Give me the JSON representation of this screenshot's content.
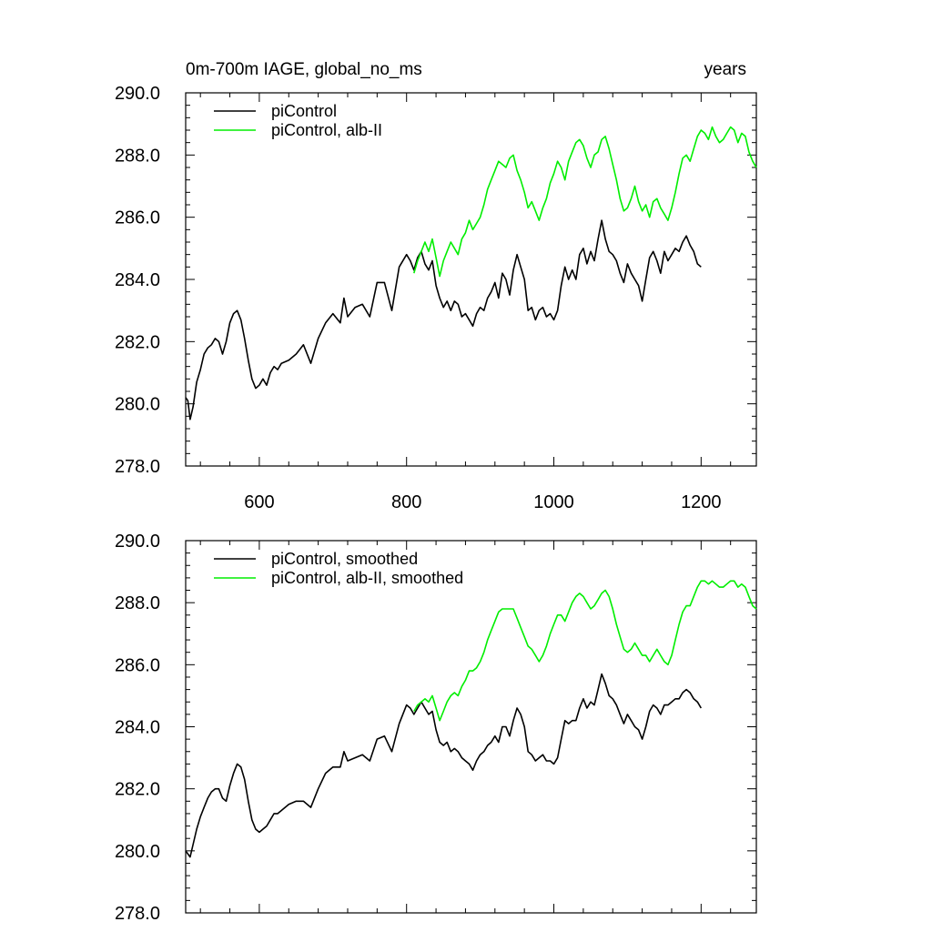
{
  "title_left": "0m-700m IAGE, global_no_ms",
  "title_right": "years",
  "colors": {
    "control": "#000000",
    "alb": "#00ee00"
  },
  "chart_data": [
    {
      "type": "line",
      "xlim": [
        500,
        1275
      ],
      "ylim": [
        278,
        290
      ],
      "xticks": [
        600,
        800,
        1000,
        1200
      ],
      "xtick_labels": [
        "600",
        "800",
        "1000",
        "1200"
      ],
      "yticks": [
        278,
        280,
        282,
        284,
        286,
        288,
        290
      ],
      "ytick_labels": [
        "278.0",
        "280.0",
        "282.0",
        "284.0",
        "286.0",
        "288.0",
        "290.0"
      ],
      "grid": false,
      "legend": "top-left",
      "series": [
        {
          "name": "piControl",
          "color": "#000000",
          "x": [
            500,
            503,
            506,
            510,
            515,
            520,
            525,
            530,
            535,
            540,
            545,
            550,
            555,
            560,
            565,
            570,
            575,
            580,
            585,
            590,
            595,
            600,
            605,
            610,
            615,
            620,
            625,
            630,
            640,
            650,
            660,
            670,
            680,
            690,
            700,
            710,
            715,
            720,
            730,
            740,
            750,
            760,
            770,
            780,
            790,
            800,
            805,
            810,
            815,
            820,
            825,
            830,
            835,
            840,
            845,
            850,
            855,
            860,
            865,
            870,
            875,
            880,
            885,
            890,
            895,
            900,
            905,
            910,
            915,
            920,
            925,
            930,
            935,
            940,
            945,
            950,
            955,
            960,
            965,
            970,
            975,
            980,
            985,
            990,
            995,
            1000,
            1005,
            1010,
            1015,
            1020,
            1025,
            1030,
            1035,
            1040,
            1045,
            1050,
            1055,
            1060,
            1065,
            1070,
            1075,
            1080,
            1085,
            1090,
            1095,
            1100,
            1105,
            1110,
            1115,
            1120,
            1125,
            1130,
            1135,
            1140,
            1145,
            1150,
            1155,
            1160,
            1165,
            1170,
            1175,
            1180,
            1185,
            1190,
            1195,
            1200
          ],
          "y": [
            280.2,
            280.1,
            279.5,
            279.9,
            280.7,
            281.1,
            281.6,
            281.8,
            281.9,
            282.1,
            282.0,
            281.6,
            282.0,
            282.6,
            282.9,
            283.0,
            282.7,
            282.1,
            281.4,
            280.8,
            280.5,
            280.6,
            280.8,
            280.6,
            281.0,
            281.2,
            281.1,
            281.3,
            281.4,
            281.6,
            281.9,
            281.3,
            282.1,
            282.6,
            282.9,
            282.6,
            283.4,
            282.8,
            283.1,
            283.2,
            282.8,
            283.9,
            283.9,
            283.0,
            284.4,
            284.8,
            284.6,
            284.3,
            284.7,
            284.9,
            284.5,
            284.3,
            284.6,
            283.8,
            283.4,
            283.1,
            283.3,
            283.0,
            283.3,
            283.2,
            282.8,
            282.9,
            282.7,
            282.5,
            282.9,
            283.1,
            283.0,
            283.4,
            283.6,
            283.9,
            283.4,
            284.2,
            284.0,
            283.5,
            284.3,
            284.8,
            284.4,
            284.0,
            283.0,
            283.1,
            282.7,
            283.0,
            283.1,
            282.8,
            282.9,
            282.7,
            283.0,
            283.8,
            284.4,
            284.0,
            284.3,
            284.0,
            284.8,
            285.0,
            284.5,
            284.9,
            284.6,
            285.3,
            285.9,
            285.3,
            284.9,
            284.8,
            284.6,
            284.2,
            283.9,
            284.5,
            284.2,
            284.0,
            283.8,
            283.3,
            284.0,
            284.7,
            284.9,
            284.6,
            284.2,
            284.9,
            284.6,
            284.8,
            285.0,
            284.9,
            285.2,
            285.4,
            285.1,
            284.9,
            284.5,
            284.4
          ]
        },
        {
          "name": "piControl, alb-II",
          "color": "#00ee00",
          "x": [
            810,
            815,
            820,
            825,
            830,
            835,
            840,
            845,
            850,
            855,
            860,
            865,
            870,
            875,
            880,
            885,
            890,
            895,
            900,
            905,
            910,
            915,
            920,
            925,
            930,
            935,
            940,
            945,
            950,
            955,
            960,
            965,
            970,
            975,
            980,
            985,
            990,
            995,
            1000,
            1005,
            1010,
            1015,
            1020,
            1025,
            1030,
            1035,
            1040,
            1045,
            1050,
            1055,
            1060,
            1065,
            1070,
            1075,
            1080,
            1085,
            1090,
            1095,
            1100,
            1105,
            1110,
            1115,
            1120,
            1125,
            1130,
            1135,
            1140,
            1145,
            1150,
            1155,
            1160,
            1165,
            1170,
            1175,
            1180,
            1185,
            1190,
            1195,
            1200,
            1205,
            1210,
            1215,
            1220,
            1225,
            1230,
            1235,
            1240,
            1245,
            1250,
            1255,
            1260,
            1265,
            1270,
            1275
          ],
          "y": [
            284.2,
            284.6,
            284.9,
            285.2,
            284.9,
            285.3,
            284.7,
            284.1,
            284.6,
            284.9,
            285.2,
            285.0,
            284.8,
            285.3,
            285.5,
            285.9,
            285.6,
            285.8,
            286.0,
            286.4,
            286.9,
            287.2,
            287.5,
            287.8,
            287.7,
            287.6,
            287.9,
            288.0,
            287.5,
            287.2,
            286.8,
            286.3,
            286.5,
            286.2,
            285.9,
            286.3,
            286.6,
            287.1,
            287.4,
            287.8,
            287.6,
            287.2,
            287.8,
            288.1,
            288.4,
            288.5,
            288.3,
            287.9,
            287.6,
            288.0,
            288.1,
            288.5,
            288.6,
            288.2,
            287.7,
            287.2,
            286.6,
            286.2,
            286.3,
            286.6,
            287.0,
            286.5,
            286.2,
            286.4,
            286.0,
            286.5,
            286.6,
            286.3,
            286.1,
            285.9,
            286.3,
            286.8,
            287.4,
            287.9,
            288.0,
            287.8,
            288.2,
            288.6,
            288.8,
            288.7,
            288.5,
            288.9,
            288.6,
            288.4,
            288.5,
            288.7,
            288.9,
            288.8,
            288.4,
            288.7,
            288.6,
            288.1,
            287.8,
            287.6
          ]
        }
      ]
    },
    {
      "type": "line",
      "xlim": [
        500,
        1275
      ],
      "ylim": [
        278,
        290
      ],
      "xticks": [
        600,
        800,
        1000,
        1200
      ],
      "yticks": [
        278,
        280,
        282,
        284,
        286,
        288,
        290
      ],
      "ytick_labels": [
        "278.0",
        "280.0",
        "282.0",
        "284.0",
        "286.0",
        "288.0",
        "290.0"
      ],
      "grid": false,
      "legend": "top-left",
      "series": [
        {
          "name": "piControl, smoothed",
          "color": "#000000",
          "x": [
            500,
            503,
            506,
            510,
            515,
            520,
            525,
            530,
            535,
            540,
            545,
            550,
            555,
            560,
            565,
            570,
            575,
            580,
            585,
            590,
            595,
            600,
            605,
            610,
            615,
            620,
            625,
            630,
            640,
            650,
            660,
            670,
            680,
            690,
            700,
            710,
            715,
            720,
            730,
            740,
            750,
            760,
            770,
            780,
            790,
            800,
            805,
            810,
            815,
            820,
            825,
            830,
            835,
            840,
            845,
            850,
            855,
            860,
            865,
            870,
            875,
            880,
            885,
            890,
            895,
            900,
            905,
            910,
            915,
            920,
            925,
            930,
            935,
            940,
            945,
            950,
            955,
            960,
            965,
            970,
            975,
            980,
            985,
            990,
            995,
            1000,
            1005,
            1010,
            1015,
            1020,
            1025,
            1030,
            1035,
            1040,
            1045,
            1050,
            1055,
            1060,
            1065,
            1070,
            1075,
            1080,
            1085,
            1090,
            1095,
            1100,
            1105,
            1110,
            1115,
            1120,
            1125,
            1130,
            1135,
            1140,
            1145,
            1150,
            1155,
            1160,
            1165,
            1170,
            1175,
            1180,
            1185,
            1190,
            1195,
            1200
          ],
          "y": [
            280.0,
            279.9,
            279.8,
            280.2,
            280.7,
            281.1,
            281.4,
            281.7,
            281.9,
            282.0,
            282.0,
            281.7,
            281.6,
            282.1,
            282.5,
            282.8,
            282.7,
            282.3,
            281.6,
            281.0,
            280.7,
            280.6,
            280.7,
            280.8,
            281.0,
            281.2,
            281.2,
            281.3,
            281.5,
            281.6,
            281.6,
            281.4,
            282.0,
            282.5,
            282.7,
            282.7,
            283.2,
            282.9,
            283.0,
            283.1,
            282.9,
            283.6,
            283.7,
            283.2,
            284.1,
            284.7,
            284.6,
            284.4,
            284.6,
            284.8,
            284.6,
            284.4,
            284.5,
            283.9,
            283.5,
            283.4,
            283.5,
            283.2,
            283.3,
            283.2,
            283.0,
            282.9,
            282.8,
            282.6,
            282.9,
            283.1,
            283.2,
            283.4,
            283.5,
            283.7,
            283.5,
            284.0,
            284.0,
            283.7,
            284.2,
            284.6,
            284.4,
            284.0,
            283.2,
            283.1,
            282.9,
            283.0,
            283.1,
            282.9,
            282.9,
            282.8,
            283.0,
            283.6,
            284.2,
            284.1,
            284.2,
            284.2,
            284.6,
            284.9,
            284.6,
            284.8,
            284.7,
            285.2,
            285.7,
            285.4,
            285.0,
            284.9,
            284.7,
            284.4,
            284.1,
            284.4,
            284.2,
            284.0,
            283.9,
            283.6,
            284.0,
            284.5,
            284.7,
            284.6,
            284.4,
            284.7,
            284.7,
            284.8,
            284.9,
            284.9,
            285.1,
            285.2,
            285.1,
            284.9,
            284.8,
            284.6
          ]
        },
        {
          "name": "piControl, alb-II, smoothed",
          "color": "#00ee00",
          "x": [
            810,
            815,
            820,
            825,
            830,
            835,
            840,
            845,
            850,
            855,
            860,
            865,
            870,
            875,
            880,
            885,
            890,
            895,
            900,
            905,
            910,
            915,
            920,
            925,
            930,
            935,
            940,
            945,
            950,
            955,
            960,
            965,
            970,
            975,
            980,
            985,
            990,
            995,
            1000,
            1005,
            1010,
            1015,
            1020,
            1025,
            1030,
            1035,
            1040,
            1045,
            1050,
            1055,
            1060,
            1065,
            1070,
            1075,
            1080,
            1085,
            1090,
            1095,
            1100,
            1105,
            1110,
            1115,
            1120,
            1125,
            1130,
            1135,
            1140,
            1145,
            1150,
            1155,
            1160,
            1165,
            1170,
            1175,
            1180,
            1185,
            1190,
            1195,
            1200,
            1205,
            1210,
            1215,
            1220,
            1225,
            1230,
            1235,
            1240,
            1245,
            1250,
            1255,
            1260,
            1265,
            1270,
            1275
          ],
          "y": [
            284.5,
            284.7,
            284.8,
            284.9,
            284.8,
            285.0,
            284.6,
            284.2,
            284.5,
            284.8,
            285.0,
            285.1,
            285.0,
            285.3,
            285.5,
            285.8,
            285.8,
            285.9,
            286.1,
            286.4,
            286.8,
            287.1,
            287.4,
            287.7,
            287.8,
            287.8,
            287.8,
            287.8,
            287.5,
            287.2,
            286.9,
            286.6,
            286.5,
            286.3,
            286.1,
            286.3,
            286.6,
            287.0,
            287.3,
            287.6,
            287.6,
            287.4,
            287.7,
            288.0,
            288.2,
            288.3,
            288.2,
            288.0,
            287.8,
            287.9,
            288.1,
            288.3,
            288.4,
            288.2,
            287.8,
            287.3,
            286.9,
            286.5,
            286.4,
            286.5,
            286.7,
            286.5,
            286.3,
            286.3,
            286.1,
            286.3,
            286.5,
            286.3,
            286.1,
            286.0,
            286.3,
            286.8,
            287.3,
            287.7,
            287.9,
            287.9,
            288.2,
            288.5,
            288.7,
            288.7,
            288.6,
            288.7,
            288.6,
            288.5,
            288.5,
            288.6,
            288.7,
            288.7,
            288.5,
            288.6,
            288.5,
            288.2,
            287.9,
            287.8
          ]
        }
      ]
    }
  ]
}
